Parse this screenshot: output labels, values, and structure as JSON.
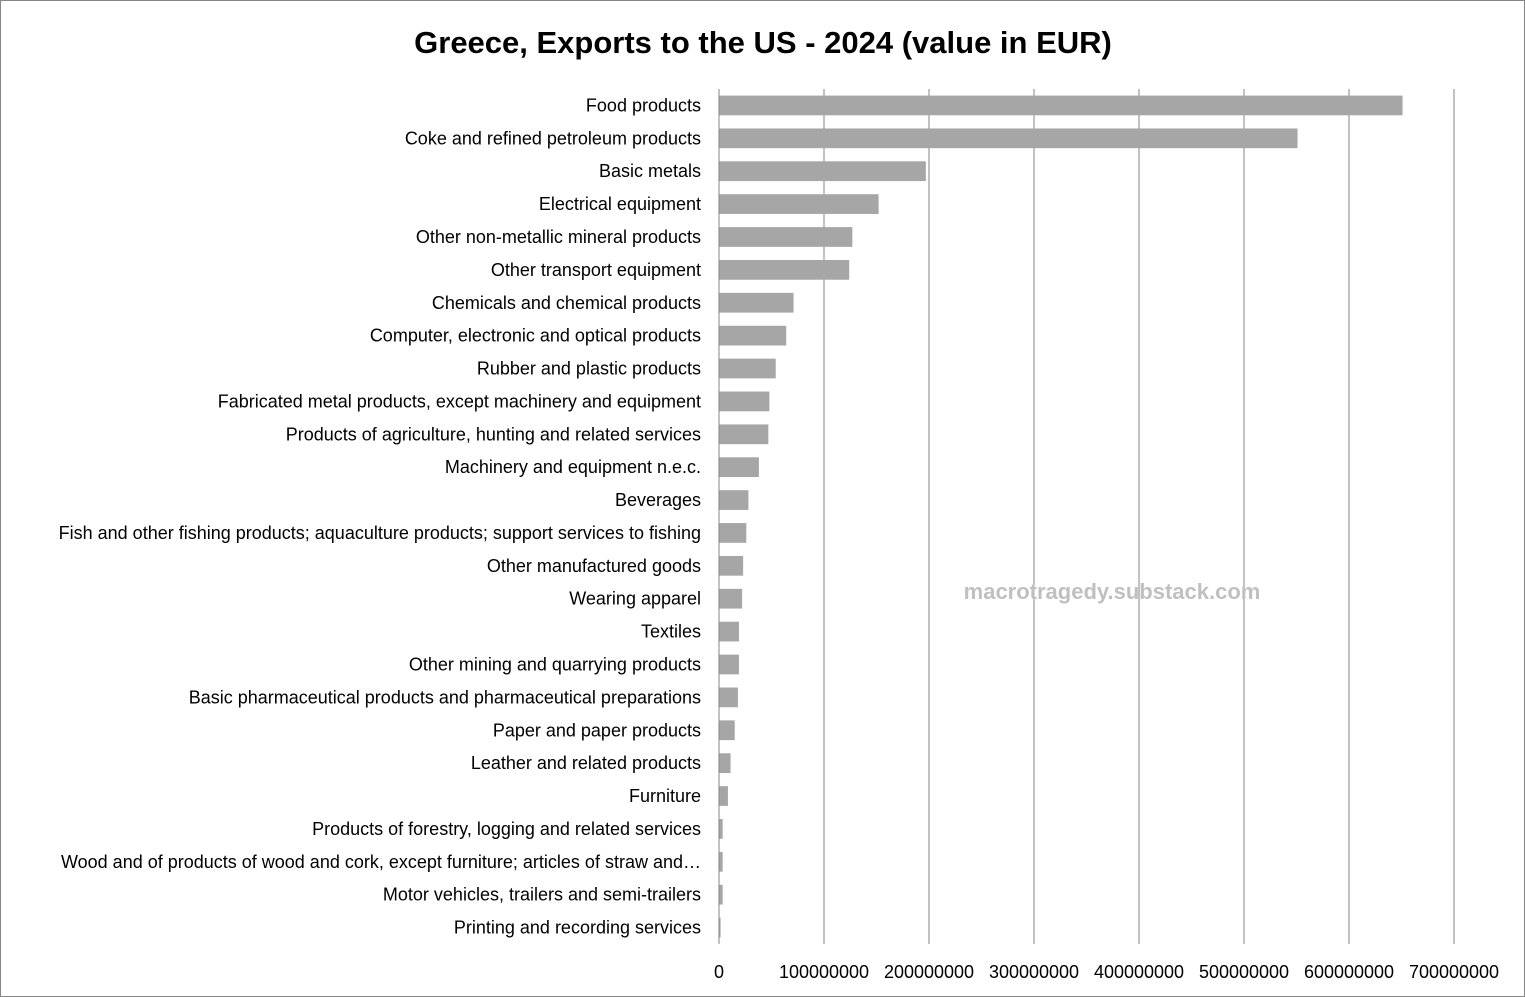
{
  "chart_data": {
    "type": "bar",
    "orientation": "horizontal",
    "title": "Greece, Exports to the US - 2024 (value in EUR)",
    "xlabel": "",
    "ylabel": "",
    "xlim": [
      0,
      700000000
    ],
    "x_ticks": [
      "0",
      "100000000",
      "200000000",
      "300000000",
      "400000000",
      "500000000",
      "600000000",
      "700000000"
    ],
    "grid": "vertical",
    "legend": "none",
    "bar_color": "#a6a6a6",
    "watermark": "macrotragedy.substack.com",
    "categories": [
      "Food products",
      "Coke and refined petroleum products",
      "Basic metals",
      "Electrical equipment",
      "Other non-metallic mineral products",
      "Other transport equipment",
      "Chemicals and chemical products",
      "Computer, electronic and optical products",
      "Rubber and plastic products",
      "Fabricated metal products, except machinery and equipment",
      "Products of agriculture, hunting and related services",
      "Machinery and equipment n.e.c.",
      "Beverages",
      "Fish and other fishing products; aquaculture products; support services to fishing",
      "Other manufactured goods",
      "Wearing apparel",
      "Textiles",
      "Other mining and quarrying products",
      "Basic pharmaceutical products and pharmaceutical preparations",
      "Paper and paper products",
      "Leather and related products",
      "Furniture",
      "Products of forestry, logging and related services",
      "Wood and of products of wood and cork, except furniture; articles of straw and…",
      "Motor vehicles, trailers and semi-trailers",
      "Printing and recording services"
    ],
    "values": [
      651000000,
      551000000,
      197000000,
      152000000,
      127000000,
      124000000,
      71000000,
      64000000,
      54000000,
      48000000,
      47000000,
      38000000,
      28000000,
      26000000,
      23000000,
      22000000,
      19000000,
      19000000,
      18000000,
      15000000,
      11000000,
      8500000,
      3500000,
      3500000,
      3500000,
      1500000
    ]
  }
}
